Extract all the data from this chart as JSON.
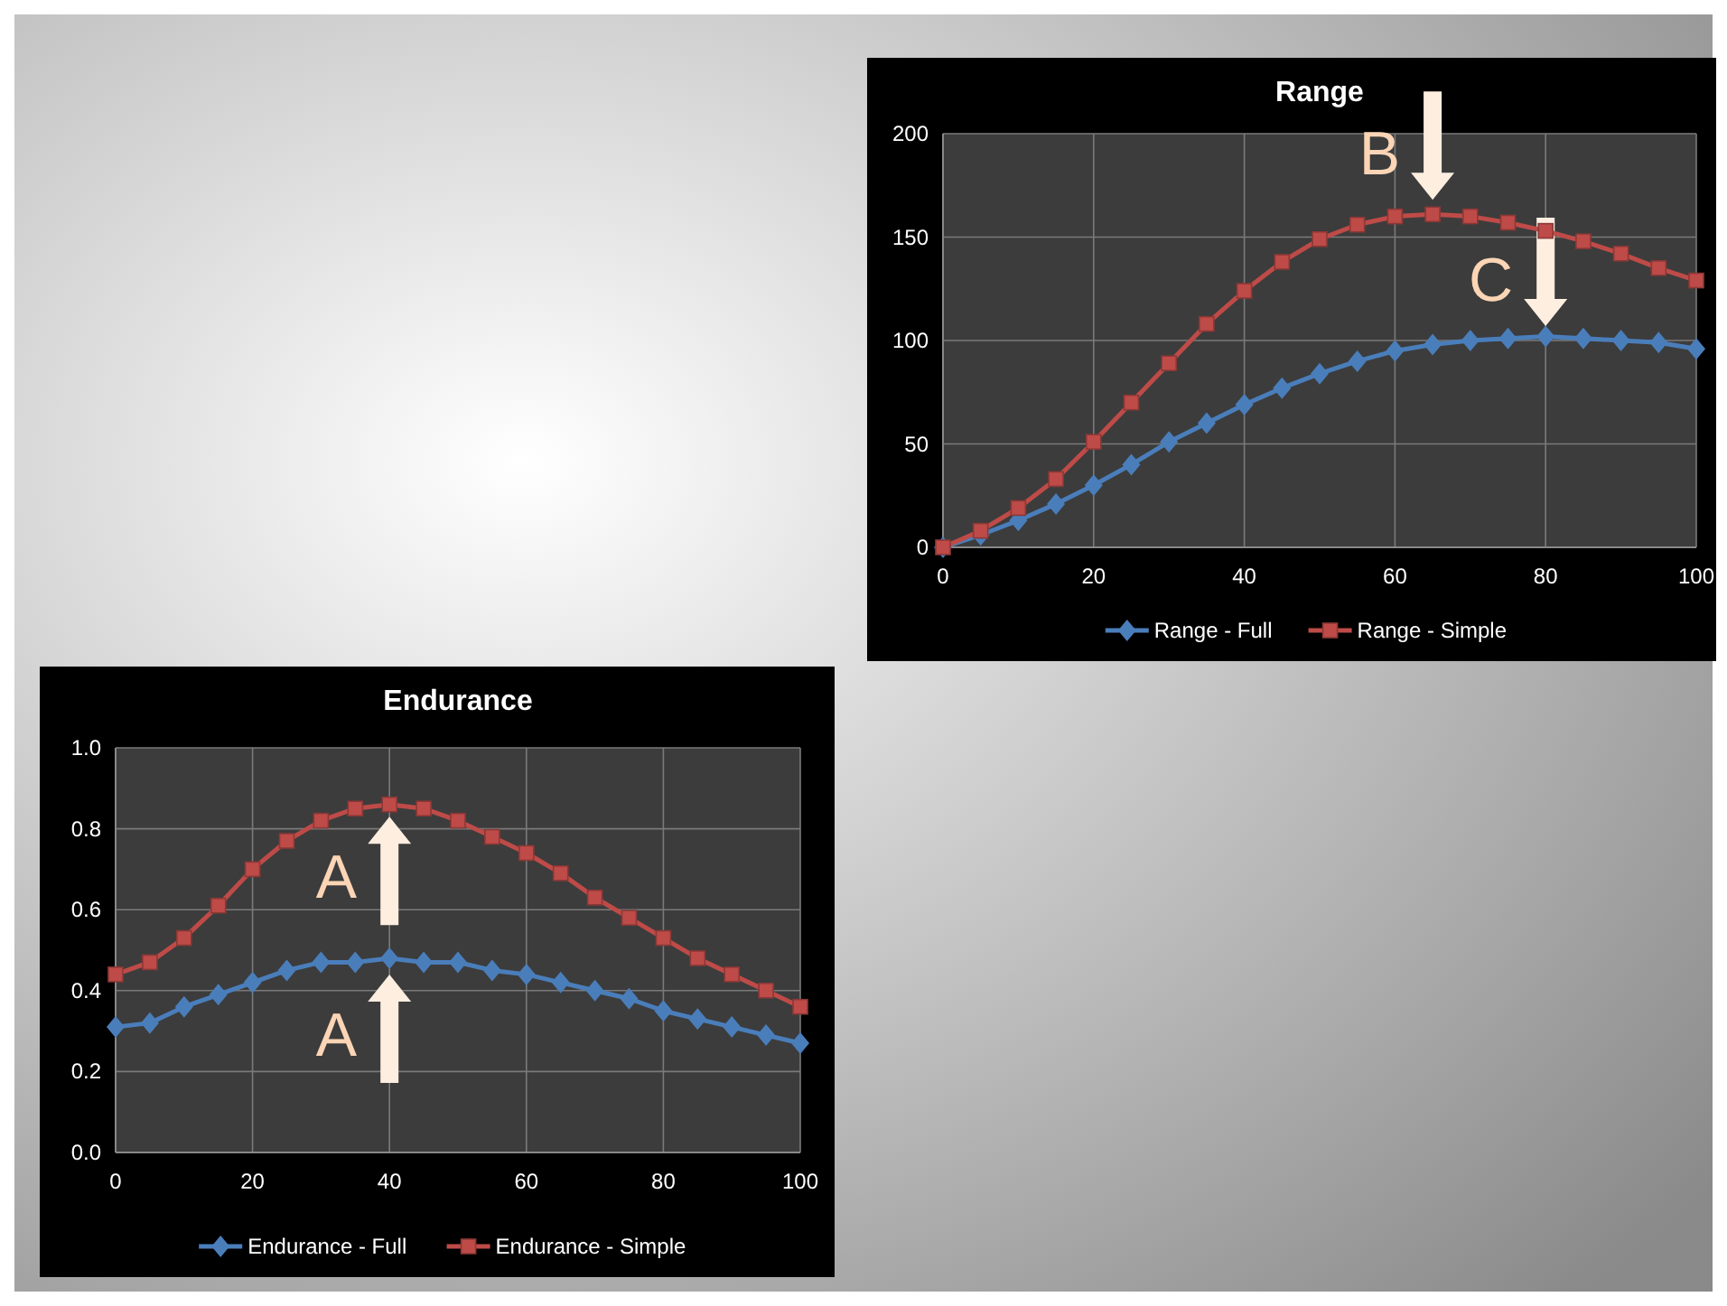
{
  "chart_data": [
    {
      "type": "line",
      "title": "Range",
      "x": [
        0,
        5,
        10,
        15,
        20,
        25,
        30,
        35,
        40,
        45,
        50,
        55,
        60,
        65,
        70,
        75,
        80,
        85,
        90,
        95,
        100
      ],
      "series": [
        {
          "name": "Range - Full",
          "color": "#4a7ebb",
          "marker": "diamond",
          "values": [
            0,
            6,
            13,
            21,
            30,
            40,
            51,
            60,
            69,
            77,
            84,
            90,
            95,
            98,
            100,
            101,
            102,
            101,
            100,
            99,
            96
          ]
        },
        {
          "name": "Range - Simple",
          "color": "#be4b48",
          "marker": "square",
          "values": [
            0,
            8,
            19,
            33,
            51,
            70,
            89,
            108,
            124,
            138,
            149,
            156,
            160,
            161,
            160,
            157,
            153,
            148,
            142,
            135,
            129
          ]
        }
      ],
      "xlim": [
        0,
        100
      ],
      "xticks": [
        0,
        20,
        40,
        60,
        80,
        100
      ],
      "ylim": [
        0,
        200
      ],
      "yticks": [
        0,
        50,
        100,
        150,
        200
      ],
      "grid": true,
      "legend": "bottom",
      "annotations": [
        {
          "text": "B",
          "x": 65,
          "y": 168
        },
        {
          "text": "C",
          "x": 80,
          "y": 107
        }
      ]
    },
    {
      "type": "line",
      "title": "Endurance",
      "x": [
        0,
        5,
        10,
        15,
        20,
        25,
        30,
        35,
        40,
        45,
        50,
        55,
        60,
        65,
        70,
        75,
        80,
        85,
        90,
        95,
        100
      ],
      "series": [
        {
          "name": "Endurance - Full",
          "color": "#4a7ebb",
          "marker": "diamond",
          "values": [
            0.31,
            0.32,
            0.36,
            0.39,
            0.42,
            0.45,
            0.47,
            0.47,
            0.48,
            0.47,
            0.47,
            0.45,
            0.44,
            0.42,
            0.4,
            0.38,
            0.35,
            0.33,
            0.31,
            0.29,
            0.27
          ]
        },
        {
          "name": "Endurance - Simple",
          "color": "#be4b48",
          "marker": "square",
          "values": [
            0.44,
            0.47,
            0.53,
            0.61,
            0.7,
            0.77,
            0.82,
            0.85,
            0.86,
            0.85,
            0.82,
            0.78,
            0.74,
            0.69,
            0.63,
            0.58,
            0.53,
            0.48,
            0.44,
            0.4,
            0.36
          ]
        }
      ],
      "xlim": [
        0,
        100
      ],
      "xticks": [
        0,
        20,
        40,
        60,
        80,
        100
      ],
      "ylim": [
        0,
        1
      ],
      "yticks": [
        {
          "value": 0,
          "label": "0.0"
        },
        {
          "value": 0.2,
          "label": "0.2"
        },
        {
          "value": 0.4,
          "label": "0.4"
        },
        {
          "value": 0.6,
          "label": "0.6"
        },
        {
          "value": 0.8,
          "label": "0.8"
        },
        {
          "value": 1,
          "label": "1.0"
        }
      ],
      "grid": true,
      "legend": "bottom",
      "annotations": [
        {
          "text": "A",
          "x": 40,
          "y": 0.83
        },
        {
          "text": "A",
          "x": 40,
          "y": 0.44
        }
      ]
    }
  ]
}
